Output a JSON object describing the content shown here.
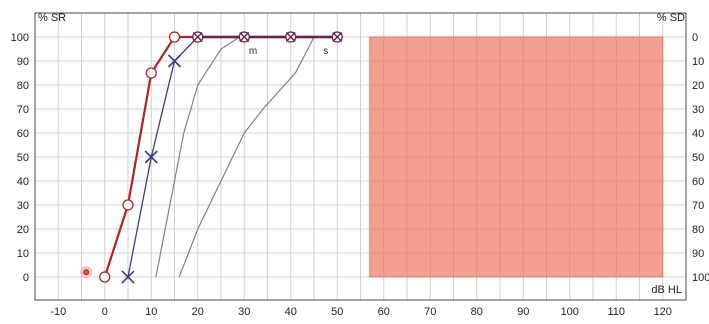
{
  "chart_data": {
    "type": "line",
    "labels": {
      "y_left": "% SR",
      "y_right": "% SD",
      "x_unit": "dB HL"
    },
    "x_axis": {
      "range": [
        -15,
        125
      ],
      "ticks": [
        -10,
        0,
        10,
        20,
        30,
        40,
        50,
        60,
        70,
        80,
        90,
        100,
        110,
        120
      ]
    },
    "y_axis_left": {
      "range": [
        0,
        100
      ],
      "ticks": [
        0,
        10,
        20,
        30,
        40,
        50,
        60,
        70,
        80,
        90,
        100
      ]
    },
    "y_axis_right": {
      "ticks": [
        100,
        90,
        80,
        70,
        60,
        50,
        40,
        30,
        20,
        10,
        0
      ]
    },
    "grid": true,
    "colors": {
      "right_ear": "#b22222",
      "left_ear": "#3a3a8c",
      "combined": "#6b1f4a",
      "reference": "#808080",
      "masked_region": "#f4a090",
      "masked_region_border": "#e07868",
      "no_response_marker": "#e05050"
    },
    "shaded_region": {
      "x_range": [
        57,
        120
      ],
      "y_range": [
        0,
        100
      ]
    },
    "series": [
      {
        "marker": "circle",
        "color": "#b22222",
        "points": [
          [
            0,
            0
          ],
          [
            5,
            30
          ],
          [
            10,
            85
          ],
          [
            15,
            100
          ],
          [
            20,
            100
          ],
          [
            30,
            100
          ],
          [
            40,
            100
          ],
          [
            50,
            100
          ]
        ]
      },
      {
        "marker": "x",
        "color": "#3a3a8c",
        "points": [
          [
            5,
            0
          ],
          [
            10,
            50
          ],
          [
            15,
            90
          ],
          [
            20,
            100
          ],
          [
            30,
            100
          ],
          [
            40,
            100
          ],
          [
            50,
            100
          ]
        ]
      }
    ],
    "reference_curves": [
      {
        "label": "m",
        "label_at": [
          31,
          97
        ],
        "points": [
          [
            11,
            0
          ],
          [
            13,
            20
          ],
          [
            15,
            40
          ],
          [
            17,
            60
          ],
          [
            20,
            80
          ],
          [
            25,
            95
          ],
          [
            29,
            100
          ]
        ]
      },
      {
        "label": "s",
        "label_at": [
          47,
          97
        ],
        "points": [
          [
            16,
            0
          ],
          [
            20,
            20
          ],
          [
            25,
            40
          ],
          [
            30,
            60
          ],
          [
            34,
            70
          ],
          [
            41,
            85
          ],
          [
            45,
            100
          ]
        ]
      }
    ],
    "no_response_point": {
      "x": -4,
      "y": 2
    }
  }
}
